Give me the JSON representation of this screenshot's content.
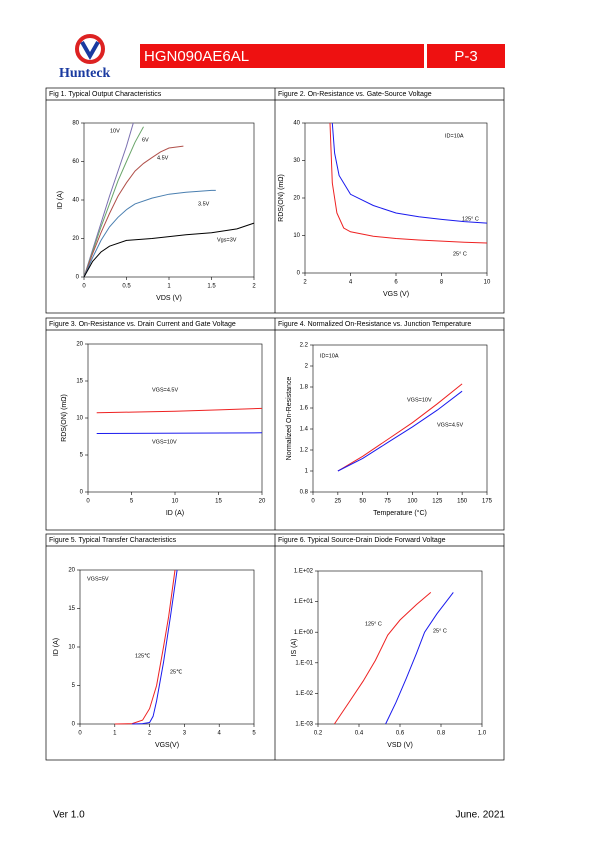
{
  "header": {
    "logo_text": "Hunteck",
    "part": "HGN090AE6AL",
    "page": "P-3"
  },
  "footer": {
    "version": "Ver 1.0",
    "date": "June. 2021"
  },
  "chart_data": [
    {
      "type": "line",
      "title": "Fig 1. Typical Output Characteristics",
      "xlabel": "VDS (V)",
      "ylabel": "ID (A)",
      "xlim": [
        0,
        2
      ],
      "ylim": [
        0,
        80
      ],
      "xticks": [
        0,
        0.5,
        1,
        1.5,
        2
      ],
      "yticks": [
        0,
        20,
        40,
        60,
        80
      ],
      "series": [
        {
          "name": "10V",
          "color": "#7a6fb0",
          "x": [
            0,
            0.1,
            0.2,
            0.3,
            0.4,
            0.5,
            0.58
          ],
          "values": [
            0,
            14,
            28,
            42,
            55,
            68,
            80
          ]
        },
        {
          "name": "6V",
          "color": "#6aa56a",
          "x": [
            0,
            0.1,
            0.2,
            0.3,
            0.4,
            0.5,
            0.6,
            0.7
          ],
          "values": [
            0,
            13,
            26,
            38,
            50,
            60,
            70,
            78
          ]
        },
        {
          "name": "4.5V",
          "color": "#b0504a",
          "x": [
            0,
            0.1,
            0.2,
            0.3,
            0.4,
            0.5,
            0.6,
            0.7,
            0.8,
            0.9,
            1.0,
            1.17
          ],
          "values": [
            0,
            12,
            23,
            33,
            42,
            49,
            55,
            59,
            62,
            65,
            67,
            68
          ]
        },
        {
          "name": "3.5V",
          "color": "#4a7fb0",
          "x": [
            0,
            0.1,
            0.2,
            0.3,
            0.4,
            0.5,
            0.6,
            0.8,
            1.0,
            1.2,
            1.5,
            1.55
          ],
          "values": [
            0,
            10,
            19,
            26,
            31,
            35,
            38,
            41,
            43,
            44,
            45,
            45
          ]
        },
        {
          "name": "Vgs=3V",
          "color": "#000000",
          "x": [
            0,
            0.1,
            0.2,
            0.3,
            0.5,
            0.8,
            1.0,
            1.2,
            1.5,
            1.8,
            2.0
          ],
          "values": [
            0,
            8,
            13,
            16,
            19,
            20,
            21,
            22,
            23,
            25,
            28
          ]
        }
      ],
      "annotations": []
    },
    {
      "type": "line",
      "title": "Figure 2. On-Resistance vs. Gate-Source Voltage",
      "xlabel": "VGS (V)",
      "ylabel": "RDS(ON) (mΩ)",
      "xlim": [
        2,
        10
      ],
      "ylim": [
        0,
        40
      ],
      "xticks": [
        2,
        4,
        6,
        8,
        10
      ],
      "yticks": [
        0,
        10,
        20,
        30,
        40
      ],
      "series": [
        {
          "name": "125° C",
          "color": "#1a1aee",
          "x": [
            3.2,
            3.3,
            3.5,
            4,
            5,
            6,
            7,
            8,
            9,
            10
          ],
          "values": [
            40,
            32,
            26,
            21,
            18,
            16,
            15,
            14.3,
            13.7,
            13.3
          ]
        },
        {
          "name": "25° C",
          "color": "#ee2222",
          "x": [
            3.1,
            3.2,
            3.4,
            3.7,
            4,
            5,
            6,
            7,
            8,
            9,
            10
          ],
          "values": [
            40,
            24,
            16,
            12,
            11,
            9.8,
            9.2,
            8.8,
            8.5,
            8.2,
            8
          ]
        }
      ],
      "annotations": [
        "ID=10A"
      ]
    },
    {
      "type": "line",
      "title": "Figure 3. On-Resistance vs. Drain Current and Gate Voltage",
      "xlabel": "ID (A)",
      "ylabel": "RDS(ON) (mΩ)",
      "xlim": [
        0,
        20
      ],
      "ylim": [
        0,
        20
      ],
      "xticks": [
        0,
        5,
        10,
        15,
        20
      ],
      "yticks": [
        0,
        5,
        10,
        15,
        20
      ],
      "series": [
        {
          "name": "VGS=4.5V",
          "color": "#ee2222",
          "x": [
            1,
            5,
            10,
            15,
            20
          ],
          "values": [
            10.7,
            10.8,
            10.9,
            11.1,
            11.3
          ]
        },
        {
          "name": "VGS=10V",
          "color": "#1a1aee",
          "x": [
            1,
            20
          ],
          "values": [
            7.9,
            8.0
          ]
        }
      ],
      "annotations": []
    },
    {
      "type": "line",
      "title": "Figure 4. Normalized On-Resistance vs. Junction Temperature",
      "xlabel": "Temperature (°C)",
      "ylabel": "Normalized On-Resistance",
      "xlim": [
        0,
        175
      ],
      "ylim": [
        0.8,
        2.2
      ],
      "xticks": [
        0,
        25,
        50,
        75,
        100,
        125,
        150,
        175
      ],
      "yticks": [
        0.8,
        1,
        1.2,
        1.4,
        1.6,
        1.8,
        2,
        2.2
      ],
      "series": [
        {
          "name": "VGS=10V",
          "color": "#ee2222",
          "x": [
            25,
            50,
            75,
            100,
            125,
            150
          ],
          "values": [
            1,
            1.14,
            1.3,
            1.46,
            1.64,
            1.83
          ]
        },
        {
          "name": "VGS=4.5V",
          "color": "#1a1aee",
          "x": [
            25,
            50,
            75,
            100,
            125,
            150
          ],
          "values": [
            1,
            1.12,
            1.27,
            1.42,
            1.58,
            1.76
          ]
        }
      ],
      "annotations": [
        "ID=10A"
      ]
    },
    {
      "type": "line",
      "title": "Figure 5. Typical Transfer Characteristics",
      "xlabel": "VGS(V)",
      "ylabel": "ID (A)",
      "xlim": [
        0,
        5
      ],
      "ylim": [
        0,
        20
      ],
      "xticks": [
        0,
        1,
        2,
        3,
        4,
        5
      ],
      "yticks": [
        0,
        5,
        10,
        15,
        20
      ],
      "series": [
        {
          "name": "125℃",
          "color": "#ee2222",
          "x": [
            1,
            1.5,
            1.8,
            2,
            2.2,
            2.4,
            2.55,
            2.73
          ],
          "values": [
            0,
            0.05,
            0.5,
            2,
            5,
            10,
            14,
            20
          ]
        },
        {
          "name": "25℃",
          "color": "#1a1aee",
          "x": [
            1.5,
            1.8,
            2,
            2.1,
            2.2,
            2.4,
            2.6,
            2.79
          ],
          "values": [
            0,
            0.05,
            0.2,
            1,
            3,
            8,
            14,
            20
          ]
        }
      ],
      "annotations": [
        "VGS=5V"
      ]
    },
    {
      "type": "line",
      "title": "Figure 6. Typical Source-Drain Diode Forward Voltage",
      "xlabel": "VSD (V)",
      "ylabel": "IS (A)",
      "log_y": true,
      "xlim": [
        0.2,
        1
      ],
      "ylim": [
        0.001,
        100
      ],
      "xticks": [
        0.2,
        0.4,
        0.6,
        0.8,
        {
          "value": 1,
          "label": "1.0"
        }
      ],
      "yticks": [
        {
          "value": 0.001,
          "label": "1.E-03"
        },
        {
          "value": 0.01,
          "label": "1.E-02"
        },
        {
          "value": 0.1,
          "label": "1.E-01"
        },
        {
          "value": 1,
          "label": "1.E+00"
        },
        {
          "value": 10,
          "label": "1.E+01"
        },
        {
          "value": 100,
          "label": "1.E+02"
        }
      ],
      "series": [
        {
          "name": "125° C",
          "color": "#ee2222",
          "x": [
            0.28,
            0.35,
            0.42,
            0.48,
            0.54,
            0.6,
            0.68,
            0.75
          ],
          "values": [
            0.001,
            0.005,
            0.025,
            0.12,
            0.8,
            2.5,
            8,
            20
          ]
        },
        {
          "name": "25° C",
          "color": "#1a1aee",
          "x": [
            0.53,
            0.58,
            0.63,
            0.68,
            0.72,
            0.78,
            0.86
          ],
          "values": [
            0.001,
            0.005,
            0.03,
            0.2,
            1,
            4,
            20
          ]
        }
      ],
      "annotations": []
    }
  ]
}
